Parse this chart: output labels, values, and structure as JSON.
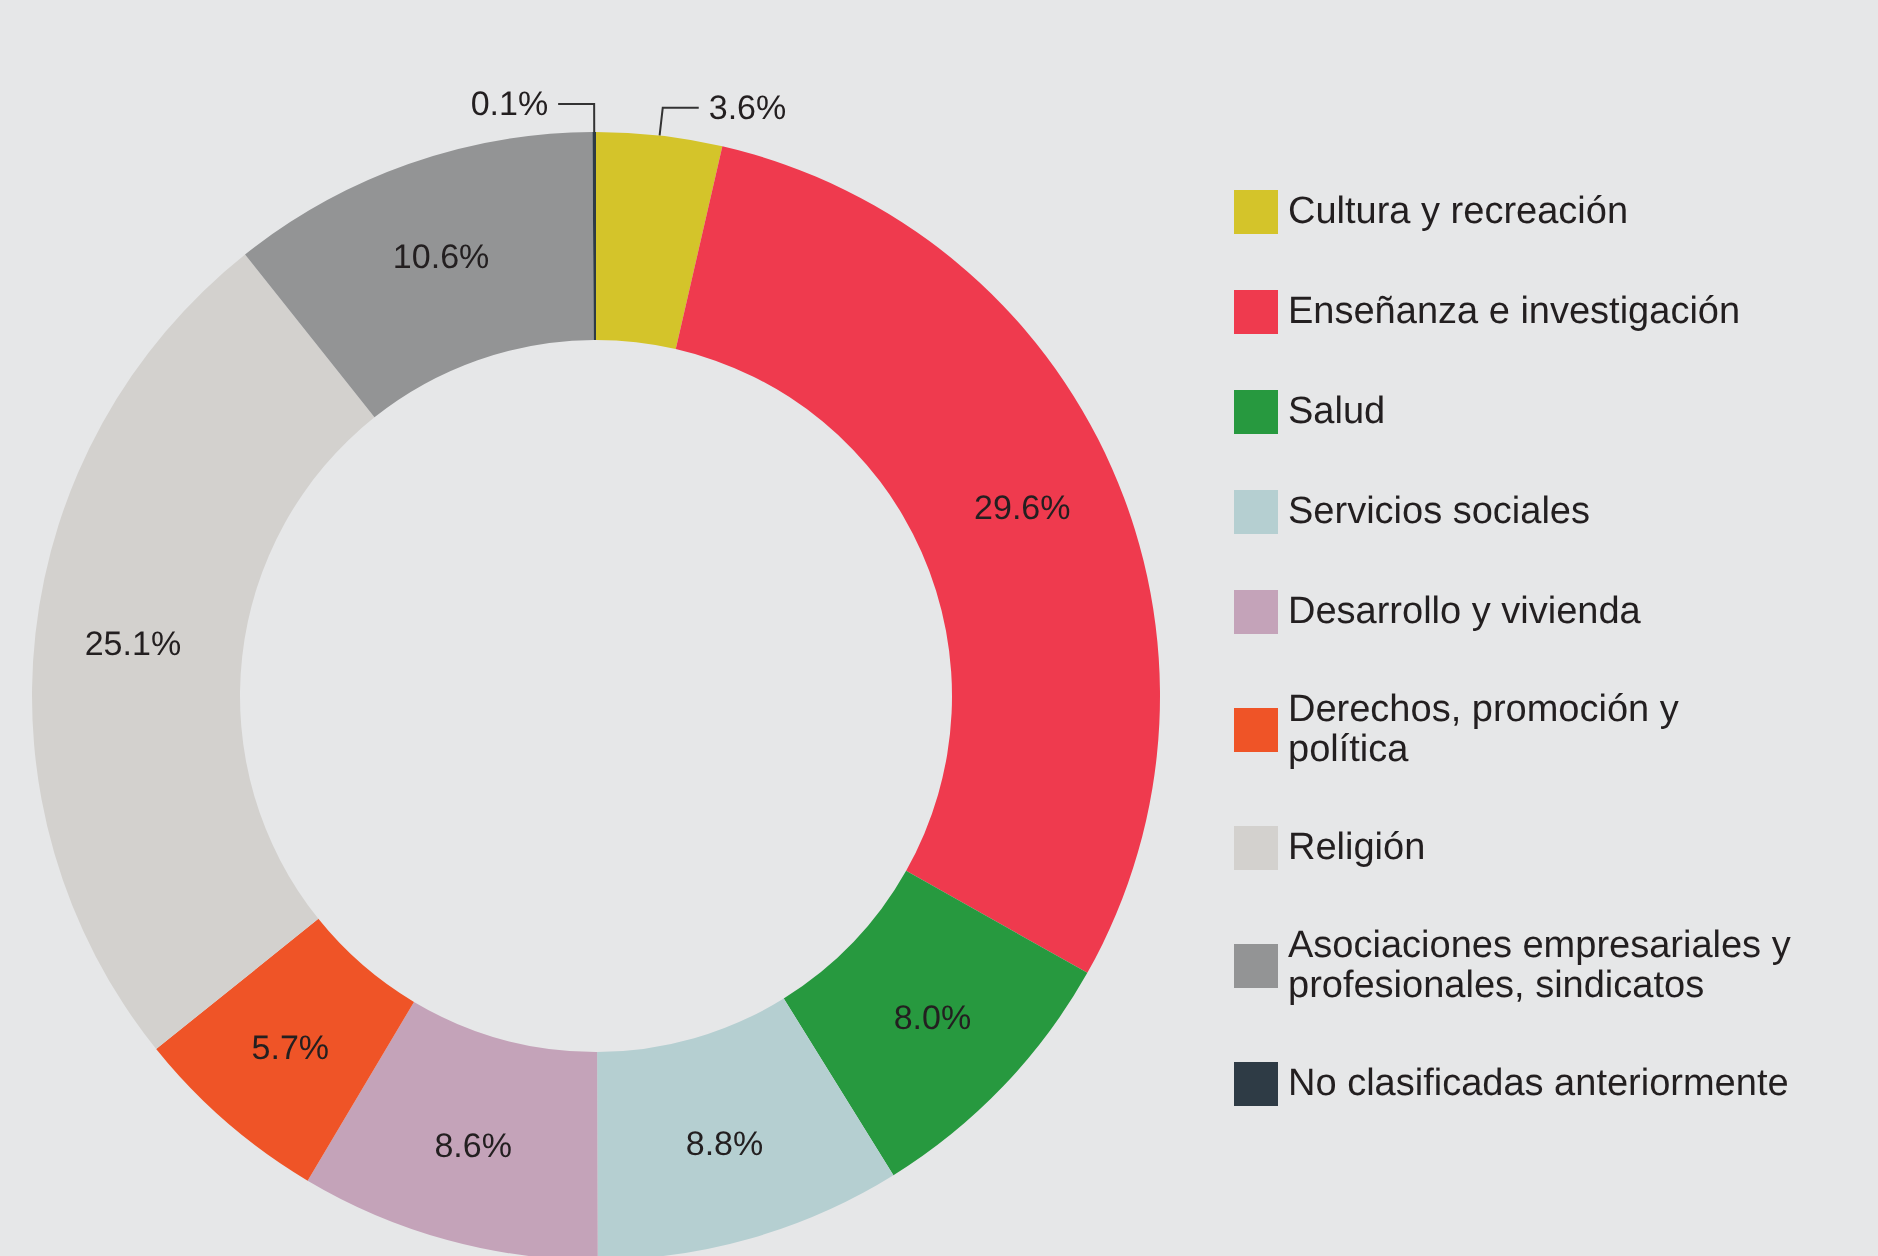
{
  "chart_data": {
    "type": "donut",
    "categories": [
      "Cultura y recreación",
      "Enseñanza e investigación",
      "Salud",
      "Servicios sociales",
      "Desarrollo y vivienda",
      "Derechos, promoción y política",
      "Religión",
      "Asociaciones empresariales y profesionales, sindicatos",
      "No clasificadas anteriormente"
    ],
    "values": [
      3.6,
      29.6,
      8.0,
      8.8,
      8.6,
      5.7,
      25.1,
      10.6,
      0.1
    ],
    "value_labels": [
      "3.6%",
      "29.6%",
      "8.0%",
      "8.8%",
      "8.6%",
      "5.7%",
      "25.1%",
      "10.6%",
      "0.1%"
    ],
    "colors": [
      "#d4c42a",
      "#ef3a4e",
      "#27993f",
      "#b5cfd1",
      "#c4a3b9",
      "#ef5427",
      "#d3d1ce",
      "#939495",
      "#2e3b45"
    ],
    "legend": "right"
  }
}
